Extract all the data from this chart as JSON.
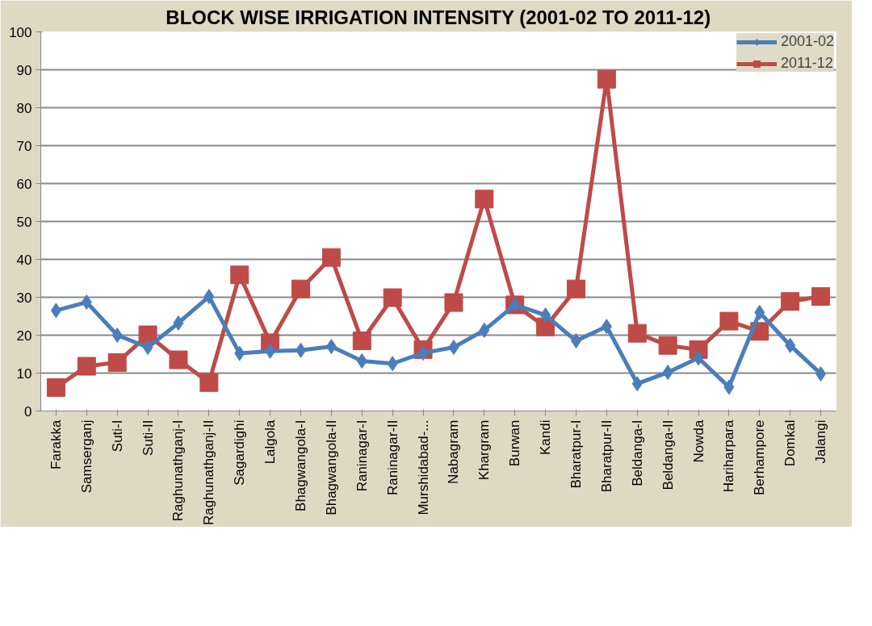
{
  "chart_data": {
    "type": "line",
    "title": "BLOCK WISE IRRIGATION INTENSITY (2001-02 TO 2011-12)",
    "categories": [
      "Farakka",
      "Samserganj",
      "Suti-I",
      "Suti-II",
      "Raghunathganj-I",
      "Raghunathganj-II",
      "Sagardighi",
      "Lalgola",
      "Bhagwangola-I",
      "Bhagwangola-II",
      "Raninagar-I",
      "Raninagar-II",
      "Murshidabad-...",
      "Nabagram",
      "Khargram",
      "Burwan",
      "Kandi",
      "Bharatpur-I",
      "Bharatpur-II",
      "Beldanga-I",
      "Beldanga-II",
      "Nowda",
      "Hariharpara",
      "Berhampore",
      "Domkal",
      "Jalangi"
    ],
    "series": [
      {
        "name": "2001-02",
        "color": "#4a7ebb",
        "marker": "diamond",
        "values": [
          26.5,
          28.7,
          20,
          16.8,
          23.2,
          30.2,
          15.2,
          15.8,
          16,
          17,
          13.2,
          12.5,
          15.3,
          16.8,
          21.3,
          28,
          25.3,
          18.5,
          22.3,
          7.2,
          10.2,
          14,
          6.3,
          26,
          17.3,
          9.8
        ]
      },
      {
        "name": "2011-12",
        "color": "#be4b48",
        "marker": "square",
        "values": [
          6.2,
          11.8,
          12.8,
          20.1,
          13.5,
          7.5,
          35.9,
          18,
          32.2,
          40.5,
          18.5,
          29.9,
          16.2,
          28.6,
          55.9,
          28,
          22.2,
          32.2,
          87.5,
          20.5,
          17.3,
          16.2,
          23.7,
          21,
          28.9,
          30.2
        ]
      }
    ],
    "ylim": [
      0,
      100
    ],
    "yticks": [
      0,
      10,
      20,
      30,
      40,
      50,
      60,
      70,
      80,
      90,
      100
    ],
    "grid": "y",
    "legend": "top right",
    "line_style": "solid"
  }
}
